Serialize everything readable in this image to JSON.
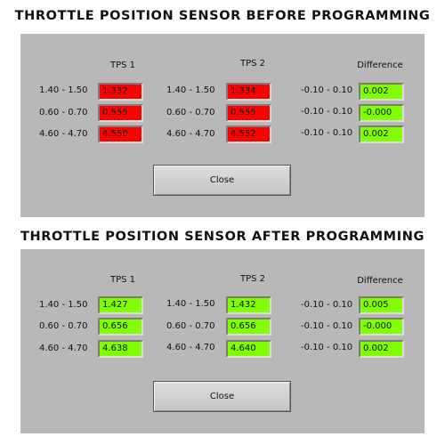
{
  "colors": {
    "panel": "#b9b7b8",
    "fail": "#ff0000",
    "pass": "#7fff00"
  },
  "sections": [
    {
      "title": "THROTTLE POSITION SENSOR BEFORE PROGRAMMING",
      "headers": {
        "tps1": "TPS 1",
        "tps2": "TPS 2",
        "difference": "Difference"
      },
      "rows": [
        {
          "range1": "1.40 - 1.50",
          "tps1": "1.332",
          "range2": "1.40 - 1.50",
          "tps2": "1.334",
          "diff_range": "-0.10 - 0.10",
          "difference": "0.002"
        },
        {
          "range1": "0.60 - 0.70",
          "tps1": "0.555",
          "range2": "0.60 - 0.70",
          "tps2": "0.555",
          "diff_range": "-0.10 - 0.10",
          "difference": "-0.000"
        },
        {
          "range1": "4.60 - 4.70",
          "tps1": "4.550",
          "range2": "4.60 - 4.70",
          "tps2": "4.552",
          "diff_range": "-0.10 - 0.10",
          "difference": "0.002"
        }
      ],
      "tps_status": "fail",
      "diff_status": "pass",
      "close_label": "Close"
    },
    {
      "title": "THROTTLE POSITION SENSOR AFTER PROGRAMMING",
      "headers": {
        "tps1": "TPS 1",
        "tps2": "TPS 2",
        "difference": "Difference"
      },
      "rows": [
        {
          "range1": "1.40 - 1.50",
          "tps1": "1.427",
          "range2": "1.40 - 1.50",
          "tps2": "1.432",
          "diff_range": "-0.10 - 0.10",
          "difference": "0.005"
        },
        {
          "range1": "0.60 - 0.70",
          "tps1": "0.656",
          "range2": "0.60 - 0.70",
          "tps2": "0.656",
          "diff_range": "-0.10 - 0.10",
          "difference": "-0.000"
        },
        {
          "range1": "4.60 - 4.70",
          "tps1": "4.638",
          "range2": "4.60 - 4.70",
          "tps2": "4.640",
          "diff_range": "-0.10 - 0.10",
          "difference": "0.002"
        }
      ],
      "tps_status": "pass",
      "diff_status": "pass",
      "close_label": "Close"
    }
  ]
}
